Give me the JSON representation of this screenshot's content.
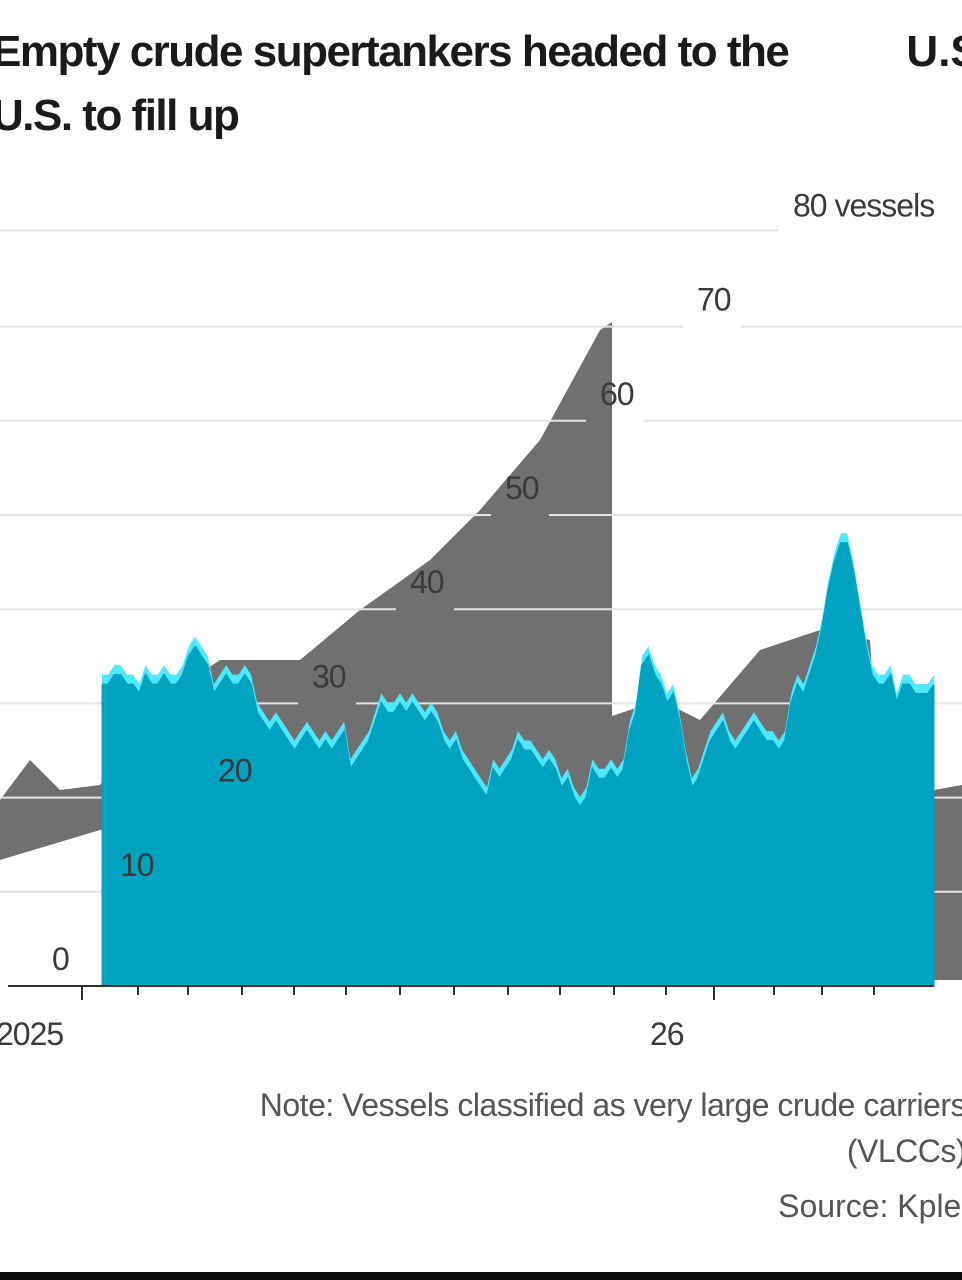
{
  "title": "Empty crude supertankers headed to the U.S. to fill up",
  "title_overlay": "U.S.",
  "note": "Note: Vessels classified as very large crude carriers (VLCCs)",
  "source": "Source: Kpler",
  "colors": {
    "area": "#00a2c2",
    "area_highlight": "#4fe8ff",
    "grid": "#e4e4e4",
    "axis": "#333333",
    "ghost": "#707070"
  },
  "chart_data": {
    "type": "area",
    "title": "Empty crude supertankers headed to the U.S. to fill up",
    "xlabel": "",
    "ylabel": "",
    "y_unit": "vessels",
    "ylim": [
      0,
      80
    ],
    "yticks": [
      0,
      10,
      20,
      30,
      40,
      50,
      60,
      70,
      80
    ],
    "ytick_labels": [
      "0",
      "10",
      "20",
      "30",
      "40",
      "50",
      "60",
      "70",
      "80 vessels"
    ],
    "x_tick_labels": [
      "2025",
      "26"
    ],
    "grid": true,
    "series": [
      {
        "values": [
          32,
          32,
          33,
          33,
          32,
          32,
          31,
          33,
          32,
          32,
          33,
          32,
          32,
          33,
          35,
          36,
          35,
          34,
          31,
          32,
          33,
          32,
          32,
          33,
          32,
          29,
          28,
          27,
          28,
          27,
          26,
          25,
          26,
          27,
          26,
          25,
          26,
          25,
          26,
          27,
          23,
          24,
          25,
          26,
          28,
          30,
          29,
          29,
          30,
          29,
          30,
          29,
          28,
          29,
          28,
          26,
          25,
          26,
          24,
          23,
          22,
          21,
          20,
          23,
          22,
          23,
          24,
          26,
          25,
          25,
          24,
          23,
          24,
          23,
          21,
          22,
          20,
          19,
          20,
          23,
          22,
          22,
          23,
          22,
          23,
          27,
          29,
          34,
          35,
          33,
          32,
          30,
          31,
          28,
          24,
          21,
          22,
          24,
          26,
          27,
          28,
          26,
          25,
          26,
          27,
          28,
          27,
          26,
          26,
          25,
          26,
          30,
          32,
          31,
          33,
          35,
          38,
          42,
          45,
          47,
          47,
          44,
          40,
          36,
          33,
          32,
          32,
          33,
          30,
          32,
          32,
          31,
          31,
          31,
          32
        ]
      }
    ]
  }
}
